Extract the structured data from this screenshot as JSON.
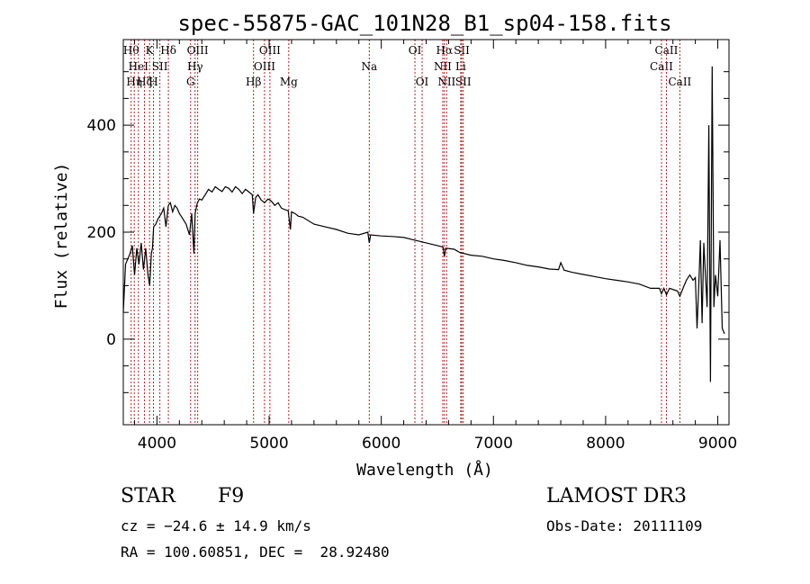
{
  "chart_data": {
    "type": "line",
    "title": "spec-55875-GAC_101N28_B1_sp04-158.fits",
    "xlabel": "Wavelength (Å)",
    "ylabel": "Flux (relative)",
    "xlim": [
      3700,
      9100
    ],
    "ylim": [
      -160,
      560
    ],
    "xticks": [
      4000,
      5000,
      6000,
      7000,
      8000,
      9000
    ],
    "xtick_labels": [
      "4000",
      "5000",
      "6000",
      "7000",
      "8000",
      "9000"
    ],
    "yticks": [
      0,
      200,
      400
    ],
    "ytick_labels": [
      "0",
      "200",
      "400"
    ],
    "line_color": "#000000",
    "marker_color": "#b22222",
    "series": [
      {
        "name": "flux",
        "x": [
          3700,
          3720,
          3740,
          3760,
          3780,
          3800,
          3820,
          3840,
          3860,
          3880,
          3900,
          3920,
          3935,
          3950,
          3960,
          3970,
          3990,
          4010,
          4040,
          4060,
          4080,
          4101,
          4120,
          4140,
          4160,
          4180,
          4200,
          4230,
          4260,
          4290,
          4310,
          4330,
          4340,
          4360,
          4380,
          4400,
          4430,
          4460,
          4490,
          4520,
          4550,
          4580,
          4610,
          4640,
          4670,
          4700,
          4730,
          4760,
          4790,
          4820,
          4850,
          4861,
          4880,
          4900,
          4930,
          4960,
          4990,
          5020,
          5050,
          5080,
          5110,
          5140,
          5170,
          5190,
          5200,
          5230,
          5260,
          5300,
          5400,
          5500,
          5600,
          5700,
          5800,
          5880,
          5893,
          5905,
          6000,
          6100,
          6200,
          6300,
          6400,
          6500,
          6550,
          6563,
          6575,
          6650,
          6700,
          6800,
          6900,
          7000,
          7100,
          7200,
          7300,
          7400,
          7500,
          7580,
          7600,
          7630,
          7700,
          7800,
          7900,
          8000,
          8100,
          8200,
          8300,
          8400,
          8480,
          8498,
          8520,
          8542,
          8570,
          8640,
          8662,
          8690,
          8720,
          8750,
          8780,
          8800,
          8815,
          8830,
          8845,
          8860,
          8875,
          8890,
          8905,
          8920,
          8935,
          8950,
          8965,
          8980,
          9000,
          9020,
          9040,
          9060
        ],
        "values": [
          50,
          140,
          150,
          160,
          175,
          120,
          170,
          140,
          180,
          130,
          170,
          120,
          100,
          160,
          170,
          210,
          215,
          225,
          235,
          245,
          210,
          250,
          255,
          238,
          250,
          245,
          235,
          225,
          215,
          195,
          235,
          160,
          235,
          255,
          262,
          260,
          270,
          280,
          275,
          285,
          280,
          276,
          285,
          282,
          275,
          285,
          280,
          272,
          280,
          275,
          270,
          235,
          265,
          270,
          260,
          255,
          262,
          258,
          250,
          255,
          245,
          242,
          240,
          205,
          238,
          235,
          230,
          228,
          215,
          210,
          205,
          198,
          195,
          200,
          180,
          195,
          193,
          192,
          190,
          185,
          180,
          175,
          172,
          155,
          170,
          168,
          162,
          157,
          155,
          150,
          147,
          143,
          138,
          135,
          131,
          130,
          143,
          129,
          125,
          121,
          117,
          113,
          110,
          107,
          103,
          95,
          95,
          85,
          95,
          83,
          95,
          90,
          80,
          95,
          110,
          120,
          110,
          115,
          20,
          100,
          185,
          30,
          180,
          120,
          60,
          400,
          -80,
          510,
          60,
          120,
          80,
          185,
          20,
          10
        ]
      }
    ],
    "line_markers": [
      {
        "wl": 3770,
        "label": "Hθ",
        "row": 0
      },
      {
        "wl": 3798,
        "label": "Hη",
        "row": 2
      },
      {
        "wl": 3835,
        "label": "HeI",
        "row": 1
      },
      {
        "wl": 3889,
        "label": "Hζ",
        "row": 2
      },
      {
        "wl": 3934,
        "label": "K",
        "row": 0
      },
      {
        "wl": 3969,
        "label": "H",
        "row": 2
      },
      {
        "wl": 4026,
        "label": "SII",
        "row": 1
      },
      {
        "wl": 4102,
        "label": "Hδ",
        "row": 0
      },
      {
        "wl": 4300,
        "label": "G",
        "row": 2
      },
      {
        "wl": 4340,
        "label": "Hγ",
        "row": 1
      },
      {
        "wl": 4363,
        "label": "OIII",
        "row": 0
      },
      {
        "wl": 4861,
        "label": "Hβ",
        "row": 2
      },
      {
        "wl": 4959,
        "label": "OIII",
        "row": 1
      },
      {
        "wl": 5007,
        "label": "OIII",
        "row": 0
      },
      {
        "wl": 5175,
        "label": "Mg",
        "row": 2
      },
      {
        "wl": 5893,
        "label": "Na",
        "row": 1
      },
      {
        "wl": 6300,
        "label": "OI",
        "row": 0
      },
      {
        "wl": 6364,
        "label": "OI",
        "row": 2
      },
      {
        "wl": 6548,
        "label": "NII",
        "row": 1
      },
      {
        "wl": 6563,
        "label": "Hα",
        "row": 0
      },
      {
        "wl": 6583,
        "label": "NII",
        "row": 2
      },
      {
        "wl": 6708,
        "label": "Li",
        "row": 1
      },
      {
        "wl": 6717,
        "label": "SII",
        "row": 0
      },
      {
        "wl": 6731,
        "label": "SII",
        "row": 2
      },
      {
        "wl": 8498,
        "label": "CaII",
        "row": 1
      },
      {
        "wl": 8542,
        "label": "CaII",
        "row": 0
      },
      {
        "wl": 8662,
        "label": "CaII",
        "row": 2
      }
    ]
  },
  "info": {
    "object_class": "STAR",
    "subclass": "F9",
    "redshift_line": "cz = −24.6 ± 14.9 km/s",
    "coords_line": "RA = 100.60851, DEC =  28.92480",
    "survey": "LAMOST DR3",
    "obs_date_line": "Obs-Date: 20111109"
  }
}
